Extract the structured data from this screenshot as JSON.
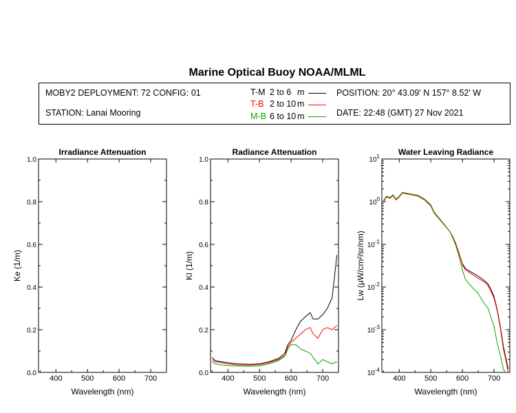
{
  "title": "Marine Optical Buoy NOAA/MLML",
  "info": {
    "deployment": "MOBY2 DEPLOYMENT: 72 CONFIG: 01",
    "station": "STATION: Lanai Mooring",
    "position": "POSITION: 20° 43.09' N   157° 8.52' W",
    "date": "DATE: 22:48 (GMT) 27 Nov 2021",
    "legend": [
      {
        "code": "T-M",
        "range": "2 to 6",
        "unit": "m",
        "color": "#000000"
      },
      {
        "code": "T-B",
        "range": "2 to 10",
        "unit": "m",
        "color": "#ff0000"
      },
      {
        "code": "M-B",
        "range": "6 to 10",
        "unit": "m",
        "color": "#00aa00"
      }
    ]
  },
  "chart_data": [
    {
      "type": "line",
      "title": "Irradiance Attenuation",
      "xlabel": "Wavelength (nm)",
      "ylabel": "Ke  (1/m)",
      "xlim": [
        345,
        750
      ],
      "ylim": [
        0,
        1
      ],
      "xticks": [
        400,
        500,
        600,
        700
      ],
      "yticks": [
        "0.0",
        "0.2",
        "0.4",
        "0.6",
        "0.8",
        "1.0"
      ],
      "series": []
    },
    {
      "type": "line",
      "title": "Radiance Attenuation",
      "xlabel": "Wavelength (nm)",
      "ylabel": "Kl  (1/m)",
      "xlim": [
        345,
        750
      ],
      "ylim": [
        0,
        1
      ],
      "xticks": [
        400,
        500,
        600,
        700
      ],
      "yticks": [
        "0.0",
        "0.2",
        "0.4",
        "0.6",
        "0.8",
        "1.0"
      ],
      "series": [
        {
          "name": "T-M",
          "color": "#000000",
          "x": [
            350,
            360,
            380,
            400,
            430,
            470,
            500,
            530,
            560,
            580,
            590,
            600,
            615,
            630,
            645,
            660,
            670,
            685,
            700,
            715,
            730,
            745
          ],
          "y": [
            0.07,
            0.055,
            0.05,
            0.045,
            0.04,
            0.038,
            0.04,
            0.05,
            0.065,
            0.09,
            0.13,
            0.15,
            0.2,
            0.24,
            0.26,
            0.28,
            0.25,
            0.25,
            0.27,
            0.3,
            0.35,
            0.55
          ]
        },
        {
          "name": "T-B",
          "color": "#ff0000",
          "x": [
            350,
            360,
            380,
            400,
            430,
            470,
            500,
            530,
            560,
            580,
            590,
            600,
            615,
            630,
            645,
            660,
            670,
            685,
            700,
            715,
            730,
            745
          ],
          "y": [
            0.06,
            0.05,
            0.045,
            0.04,
            0.035,
            0.034,
            0.036,
            0.045,
            0.06,
            0.08,
            0.12,
            0.14,
            0.16,
            0.18,
            0.2,
            0.21,
            0.18,
            0.16,
            0.2,
            0.21,
            0.2,
            0.22
          ]
        },
        {
          "name": "M-B",
          "color": "#00aa00",
          "x": [
            350,
            360,
            380,
            400,
            430,
            470,
            500,
            530,
            560,
            580,
            590,
            600,
            615,
            630,
            645,
            660,
            670,
            685,
            700,
            715,
            730,
            745
          ],
          "y": [
            0.05,
            0.04,
            0.035,
            0.032,
            0.03,
            0.028,
            0.03,
            0.04,
            0.055,
            0.075,
            0.11,
            0.13,
            0.13,
            0.11,
            0.1,
            0.09,
            0.07,
            0.04,
            0.06,
            0.05,
            0.04,
            0.05
          ]
        }
      ]
    },
    {
      "type": "line",
      "title": "Water Leaving Radiance",
      "xlabel": "Wavelength (nm)",
      "ylabel": "Lw  (μW/cm²/sr/nm)",
      "yscale": "log",
      "xlim": [
        345,
        750
      ],
      "ylim": [
        0.0001,
        10
      ],
      "xticks": [
        400,
        500,
        600,
        700
      ],
      "ytick_exponents": [
        "1",
        "0",
        "-1",
        "-2",
        "-3",
        "-4"
      ],
      "series": [
        {
          "name": "T-M",
          "color": "#000000",
          "x": [
            350,
            360,
            370,
            380,
            390,
            400,
            410,
            420,
            440,
            460,
            480,
            500,
            510,
            520,
            540,
            560,
            570,
            580,
            590,
            600,
            610,
            630,
            650,
            670,
            680,
            690,
            700,
            710,
            720,
            730,
            740,
            745
          ],
          "y": [
            1.0,
            1.3,
            1.2,
            1.4,
            1.1,
            1.3,
            1.6,
            1.55,
            1.45,
            1.35,
            1.1,
            0.8,
            0.55,
            0.45,
            0.3,
            0.2,
            0.15,
            0.1,
            0.06,
            0.035,
            0.027,
            0.022,
            0.018,
            0.014,
            0.012,
            0.009,
            0.006,
            0.003,
            0.0012,
            0.0004,
            0.00018,
            0.00012
          ]
        },
        {
          "name": "T-B",
          "color": "#ff0000",
          "x": [
            350,
            360,
            370,
            380,
            390,
            400,
            410,
            420,
            440,
            460,
            480,
            500,
            510,
            520,
            540,
            560,
            570,
            580,
            590,
            600,
            610,
            630,
            650,
            670,
            680,
            690,
            700,
            710,
            720,
            730,
            740,
            745
          ],
          "y": [
            1.0,
            1.3,
            1.2,
            1.4,
            1.1,
            1.3,
            1.6,
            1.55,
            1.45,
            1.35,
            1.1,
            0.8,
            0.55,
            0.45,
            0.3,
            0.2,
            0.15,
            0.1,
            0.06,
            0.033,
            0.025,
            0.02,
            0.016,
            0.013,
            0.011,
            0.008,
            0.0055,
            0.0028,
            0.0011,
            0.00035,
            0.00016,
            0.0001
          ]
        },
        {
          "name": "M-B",
          "color": "#00aa00",
          "x": [
            350,
            360,
            370,
            380,
            390,
            400,
            410,
            420,
            440,
            460,
            480,
            500,
            510,
            520,
            540,
            560,
            570,
            580,
            590,
            600,
            610,
            630,
            650,
            670,
            680,
            690,
            700,
            710,
            720,
            730,
            735
          ],
          "y": [
            1.05,
            1.35,
            1.25,
            1.45,
            1.15,
            1.35,
            1.65,
            1.6,
            1.5,
            1.4,
            1.15,
            0.85,
            0.58,
            0.47,
            0.31,
            0.2,
            0.14,
            0.09,
            0.05,
            0.025,
            0.015,
            0.01,
            0.007,
            0.004,
            0.0033,
            0.002,
            0.0012,
            0.0005,
            0.00025,
            0.00012,
            0.0001
          ]
        }
      ]
    }
  ]
}
